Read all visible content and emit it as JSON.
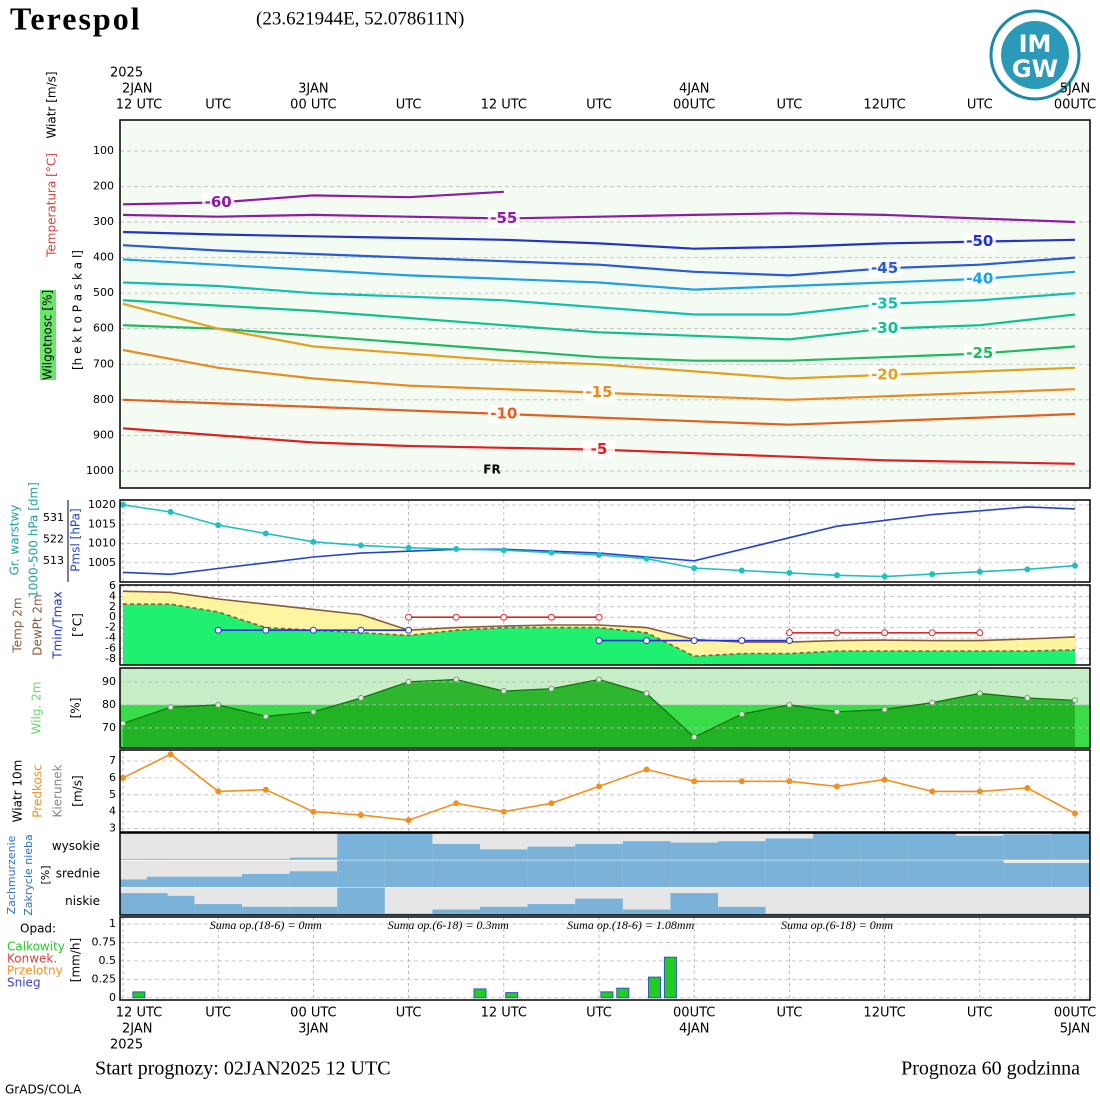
{
  "header": {
    "title": "Terespol",
    "coords": "(23.621944E, 52.078611N)",
    "logo": [
      "IM",
      "GW"
    ]
  },
  "time_axis": {
    "xlim": [
      0,
      60
    ],
    "xticks": [
      {
        "value": 0,
        "label": "12 UTC"
      },
      {
        "value": 6,
        "label": "UTC"
      },
      {
        "value": 12,
        "label": "00 UTC"
      },
      {
        "value": 18,
        "label": "UTC"
      },
      {
        "value": 24,
        "label": "12 UTC"
      },
      {
        "value": 30,
        "label": "UTC"
      },
      {
        "value": 36,
        "label": "00UTC"
      },
      {
        "value": 42,
        "label": "UTC"
      },
      {
        "value": 48,
        "label": "12UTC"
      },
      {
        "value": 54,
        "label": "UTC"
      },
      {
        "value": 60,
        "label": "00UTC"
      }
    ],
    "dates": [
      {
        "value": 0,
        "label": "2JAN"
      },
      {
        "value": 12,
        "label": "3JAN"
      },
      {
        "value": 36,
        "label": "4JAN"
      },
      {
        "value": 60,
        "label": "5JAN"
      }
    ],
    "year": "2025"
  },
  "chart_data": [
    {
      "type": "contour",
      "ylabel": "[h e k t o P a s k a l]",
      "side_labels": [
        "Wiatr [m/s]",
        "Temperatura [°C]",
        "Wilgotnosc [%]"
      ],
      "annotation": "FR",
      "ylim": [
        1048,
        13
      ],
      "yticks": [
        100,
        200,
        300,
        400,
        500,
        600,
        700,
        800,
        900,
        1000
      ],
      "x": [
        0,
        6,
        12,
        18,
        24,
        30,
        36,
        42,
        48,
        54,
        60
      ],
      "series": [
        {
          "name": "-60",
          "color": "#8e1aa6",
          "values": [
            250,
            245,
            225,
            230,
            215,
            null,
            null,
            null,
            null,
            null,
            null
          ]
        },
        {
          "name": "-55",
          "color": "#8e1aa6",
          "values": [
            280,
            285,
            280,
            285,
            290,
            285,
            280,
            275,
            280,
            290,
            300
          ]
        },
        {
          "name": "-50",
          "color": "#2233c8",
          "values": [
            328,
            335,
            340,
            345,
            350,
            360,
            375,
            370,
            360,
            355,
            350
          ]
        },
        {
          "name": "-45",
          "color": "#2a5ad8",
          "values": [
            365,
            380,
            390,
            400,
            410,
            420,
            440,
            450,
            430,
            420,
            400
          ]
        },
        {
          "name": "-40",
          "color": "#1ea0e6",
          "values": [
            405,
            420,
            435,
            450,
            460,
            470,
            490,
            480,
            470,
            460,
            440
          ]
        },
        {
          "name": "-35",
          "color": "#10bfb0",
          "values": [
            470,
            480,
            500,
            510,
            520,
            540,
            560,
            560,
            530,
            520,
            500
          ]
        },
        {
          "name": "-30",
          "color": "#10c090",
          "values": [
            520,
            535,
            550,
            570,
            590,
            610,
            620,
            630,
            600,
            590,
            560
          ]
        },
        {
          "name": "-25",
          "color": "#20b860",
          "values": [
            590,
            600,
            620,
            640,
            660,
            680,
            690,
            690,
            680,
            670,
            650
          ]
        },
        {
          "name": "-20",
          "color": "#e0a020",
          "values": [
            530,
            600,
            650,
            670,
            690,
            700,
            720,
            740,
            730,
            720,
            710
          ]
        },
        {
          "name": "-15",
          "color": "#e88a20",
          "values": [
            660,
            710,
            740,
            760,
            770,
            780,
            790,
            800,
            790,
            780,
            770
          ]
        },
        {
          "name": "-10",
          "color": "#e06020",
          "values": [
            800,
            810,
            820,
            830,
            840,
            850,
            860,
            870,
            860,
            850,
            840
          ]
        },
        {
          "name": "-5",
          "color": "#e02020",
          "values": [
            880,
            900,
            920,
            930,
            935,
            940,
            950,
            960,
            970,
            975,
            980
          ]
        }
      ]
    },
    {
      "type": "line",
      "ylabel": "Pmsl [hPa]",
      "y2label": [
        "Gr. warstwy",
        "1000-500 hPa [dm]"
      ],
      "ylim": [
        1000,
        1021.3
      ],
      "yticks": [
        1005,
        1010,
        1015,
        1020
      ],
      "y2lim": [
        504.2,
        538.5
      ],
      "y2ticks": [
        513,
        522,
        531
      ],
      "x": [
        0,
        3,
        6,
        9,
        12,
        15,
        18,
        21,
        24,
        27,
        30,
        33,
        36,
        39,
        42,
        45,
        48,
        51,
        54,
        57,
        60
      ],
      "series": [
        {
          "color": "#2244cc",
          "values": [
            1002.5,
            1002,
            1003.5,
            1005,
            1006.5,
            1007.5,
            1008,
            1008.5,
            1008.5,
            1008,
            1007.5,
            1006.5,
            1005.5,
            1008.5,
            1011.5,
            1014.5,
            1016,
            1017.5,
            1018.5,
            1019.5,
            1019
          ]
        },
        {
          "color": "#20c0c0",
          "axis": "y2",
          "values": [
            536.5,
            533.5,
            528,
            524.5,
            521,
            519.5,
            518.5,
            518,
            517.5,
            516.5,
            515.5,
            514,
            510,
            509,
            508,
            507,
            506.5,
            507.5,
            508.5,
            509.5,
            511
          ]
        }
      ]
    },
    {
      "type": "line",
      "ylabel": [
        "Temp 2m",
        "DewPt 2m",
        "Tmin/Tmax",
        "[°C]"
      ],
      "ylim": [
        -9.2,
        6.2
      ],
      "yticks": [
        6,
        4,
        2,
        0,
        -2,
        -4,
        -6,
        -8
      ],
      "x": [
        0,
        3,
        6,
        9,
        12,
        15,
        18,
        21,
        24,
        27,
        30,
        33,
        36,
        39,
        42,
        45,
        48,
        51,
        54,
        57,
        60
      ],
      "series": [
        {
          "color": "#8a5a3a",
          "values": [
            5,
            4.8,
            3.5,
            2.5,
            1.5,
            0.5,
            -2.5,
            -2,
            -1.7,
            -1.5,
            -1.5,
            -2,
            -4.3,
            -4.8,
            -4.8,
            -4.5,
            -4.4,
            -4.5,
            -4.5,
            -4.2,
            -3.8
          ]
        },
        {
          "color": "#8a5a3a",
          "dash": true,
          "values": [
            2.5,
            2.5,
            1,
            -2,
            -2.5,
            -3,
            -3.5,
            -2.5,
            -2,
            -2,
            -2,
            -3,
            -7.5,
            -7,
            -7,
            -6.5,
            -6.5,
            -6.5,
            -6.5,
            -6.5,
            -6.3
          ]
        },
        {
          "color": "#2233dd",
          "markers": true,
          "values": [
            null,
            null,
            -2.5,
            -2.5,
            -2.5,
            -2.5,
            -2.5,
            null,
            null,
            null,
            -4.5,
            -4.5,
            -4.5,
            -4.5,
            -4.5,
            null,
            null,
            null,
            null,
            null,
            null
          ]
        },
        {
          "color": "#e02828",
          "markers": true,
          "values": [
            null,
            null,
            null,
            null,
            null,
            null,
            0,
            0,
            0,
            0,
            0,
            null,
            null,
            null,
            -3,
            -3,
            -3,
            -3,
            -3,
            null,
            null
          ]
        }
      ]
    },
    {
      "type": "area",
      "ylabel": [
        "Wilg. 2m",
        "[%]"
      ],
      "ylim": [
        61.3,
        96
      ],
      "yticks": [
        70,
        80,
        90
      ],
      "x": [
        0,
        3,
        6,
        9,
        12,
        15,
        18,
        21,
        24,
        27,
        30,
        33,
        36,
        39,
        42,
        45,
        48,
        51,
        54,
        57,
        60
      ],
      "color": "#1fae1f",
      "values": [
        72,
        79,
        80,
        75,
        77,
        83,
        90,
        91,
        86,
        87,
        91,
        85,
        66,
        76,
        80,
        77,
        78,
        81,
        85,
        83,
        82
      ]
    },
    {
      "type": "line",
      "ylabel": [
        "Wiatr 10m",
        "Predkosc",
        "Kierunek",
        "[m/s]"
      ],
      "ylim": [
        2.8,
        7.65
      ],
      "yticks": [
        3,
        4,
        5,
        6,
        7
      ],
      "x": [
        0,
        3,
        6,
        9,
        12,
        15,
        18,
        21,
        24,
        27,
        30,
        33,
        36,
        39,
        42,
        45,
        48,
        51,
        54,
        57,
        60
      ],
      "color": "#f09020",
      "values": [
        6,
        7.4,
        5.2,
        5.3,
        4,
        3.8,
        3.5,
        4.5,
        4,
        4.5,
        5.5,
        6.5,
        5.8,
        5.8,
        5.8,
        5.5,
        5.9,
        5.2,
        5.2,
        5.4,
        3.9
      ]
    },
    {
      "type": "cloud",
      "ylabel": [
        "Zachmurzenie",
        "Zakrycie nieba",
        "[%]"
      ],
      "x": [
        0,
        3,
        6,
        9,
        12,
        15,
        18,
        21,
        24,
        27,
        30,
        33,
        36,
        39,
        42,
        45,
        48,
        51,
        54,
        57,
        60
      ],
      "color": "#7ab2da",
      "series": [
        {
          "name": "wysokie",
          "values": [
            5,
            5,
            5,
            5,
            10,
            100,
            100,
            60,
            40,
            50,
            60,
            70,
            65,
            70,
            80,
            100,
            100,
            100,
            90,
            95,
            100
          ]
        },
        {
          "name": "srednie",
          "values": [
            30,
            40,
            40,
            50,
            60,
            100,
            100,
            100,
            100,
            100,
            100,
            100,
            100,
            100,
            100,
            100,
            100,
            100,
            100,
            90,
            90
          ]
        },
        {
          "name": "niskie",
          "values": [
            80,
            70,
            40,
            30,
            30,
            100,
            5,
            20,
            30,
            40,
            60,
            20,
            80,
            30,
            5,
            5,
            5,
            5,
            5,
            5,
            5
          ]
        }
      ]
    },
    {
      "type": "bar",
      "ylabel": "[mm/h]",
      "legend_title": "Opad:",
      "legend": [
        {
          "name": "Calkowity",
          "color": "#22cc22"
        },
        {
          "name": "Konwek.",
          "color": "#e04040"
        },
        {
          "name": "Przelotny",
          "color": "#f09020"
        },
        {
          "name": "Snieg",
          "color": "#4040cc"
        }
      ],
      "annotations": [
        {
          "value": 9,
          "label": "Suma op.(18-6) = 0mm"
        },
        {
          "value": 20.5,
          "label": "Suma op.(6-18) = 0.3mm"
        },
        {
          "value": 32,
          "label": "Suma op.(18-6) = 1.08mm"
        },
        {
          "value": 45,
          "label": "Suma op.(6-18) = 0mm"
        }
      ],
      "ylim": [
        -0.03,
        1.095
      ],
      "yticks": [
        0,
        0.25,
        0.5,
        0.75,
        1
      ],
      "x": [
        1,
        22.5,
        24.5,
        30.5,
        31.5,
        33.5,
        34.5
      ],
      "color": "#22cc22",
      "values": [
        0.08,
        0.12,
        0.07,
        0.08,
        0.13,
        0.28,
        0.55
      ]
    }
  ],
  "footer": {
    "start": "Start prognozy: 02JAN2025 12 UTC",
    "range": "Prognoza 60 godzinna",
    "credit": "GrADS/COLA"
  }
}
